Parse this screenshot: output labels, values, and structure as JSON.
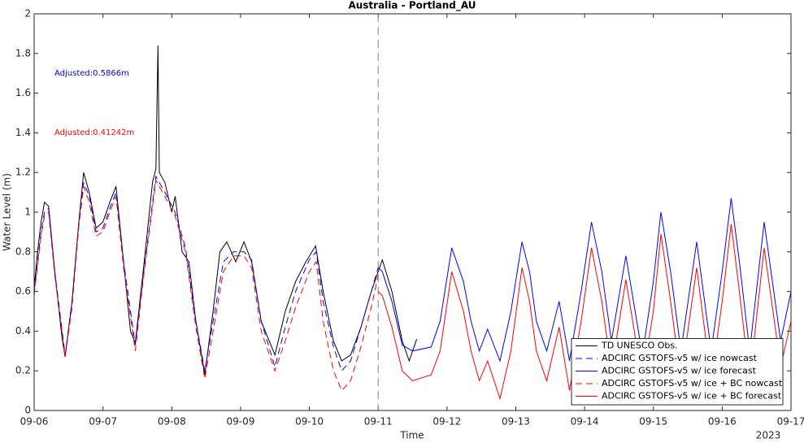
{
  "chart_data": {
    "type": "line",
    "title": "Australia - Portland_AU",
    "xlabel": "Time",
    "xlabel_secondary": "2023",
    "ylabel": "Water Level (m)",
    "xlim": [
      0,
      11
    ],
    "xticks": [
      {
        "value": 0,
        "label": "09-06"
      },
      {
        "value": 1,
        "label": "09-07"
      },
      {
        "value": 2,
        "label": "09-08"
      },
      {
        "value": 3,
        "label": "09-09"
      },
      {
        "value": 4,
        "label": "09-10"
      },
      {
        "value": 5,
        "label": "09-11"
      },
      {
        "value": 6,
        "label": "09-12"
      },
      {
        "value": 7,
        "label": "09-13"
      },
      {
        "value": 8,
        "label": "09-14"
      },
      {
        "value": 9,
        "label": "09-15"
      },
      {
        "value": 10,
        "label": "09-16"
      },
      {
        "value": 11,
        "label": "09-17"
      }
    ],
    "ylim": [
      0,
      2
    ],
    "yticks": [
      0,
      0.2,
      0.4,
      0.6,
      0.8,
      1,
      1.2,
      1.4,
      1.6,
      1.8,
      2
    ],
    "vline": 5,
    "legend_position": "lower-right",
    "annotations": [
      {
        "text": "Adjusted:0.5866m",
        "color": "#0000ff"
      },
      {
        "text": "Adjusted:0.41242m",
        "color": "#ff0000"
      }
    ],
    "series": [
      {
        "name": "TD UNESCO Obs.",
        "color": "#000000",
        "line_style": "solid",
        "x": [
          0,
          0.05,
          0.1,
          0.15,
          0.21,
          0.3,
          0.4,
          0.45,
          0.55,
          0.65,
          0.72,
          0.8,
          0.9,
          1.0,
          1.1,
          1.19,
          1.3,
          1.4,
          1.47,
          1.6,
          1.72,
          1.77,
          1.8,
          1.82,
          1.9,
          2.0,
          2.05,
          2.15,
          2.25,
          2.35,
          2.48,
          2.6,
          2.7,
          2.8,
          2.93,
          3.05,
          3.16,
          3.3,
          3.5,
          3.65,
          3.8,
          3.95,
          4.09,
          4.2,
          4.35,
          4.47,
          4.6,
          4.75,
          4.9,
          5.06,
          5.2,
          5.35,
          5.45,
          5.56
        ],
        "values": [
          0.62,
          0.8,
          0.95,
          1.05,
          1.03,
          0.7,
          0.38,
          0.27,
          0.55,
          0.95,
          1.2,
          1.1,
          0.92,
          0.95,
          1.05,
          1.13,
          0.75,
          0.4,
          0.34,
          0.75,
          1.15,
          1.22,
          1.84,
          1.2,
          1.15,
          1.0,
          1.08,
          0.8,
          0.75,
          0.45,
          0.18,
          0.5,
          0.8,
          0.85,
          0.75,
          0.85,
          0.75,
          0.45,
          0.28,
          0.5,
          0.65,
          0.75,
          0.83,
          0.6,
          0.35,
          0.25,
          0.28,
          0.42,
          0.6,
          0.76,
          0.6,
          0.35,
          0.25,
          0.36
        ]
      },
      {
        "name": "ADCIRC GSTOFS-v5 w/ ice nowcast",
        "color": "#0000ff",
        "line_style": "dashed",
        "x": [
          0,
          0.1,
          0.15,
          0.21,
          0.3,
          0.45,
          0.55,
          0.65,
          0.72,
          0.8,
          0.9,
          1.0,
          1.1,
          1.19,
          1.3,
          1.47,
          1.6,
          1.77,
          1.9,
          2.05,
          2.2,
          2.35,
          2.48,
          2.6,
          2.75,
          2.9,
          3.05,
          3.16,
          3.3,
          3.5,
          3.65,
          3.8,
          4.0,
          4.1,
          4.2,
          4.35,
          4.47,
          4.6,
          4.75,
          4.9,
          5.0
        ],
        "values": [
          0.6,
          0.9,
          1.0,
          1.02,
          0.7,
          0.28,
          0.55,
          0.95,
          1.15,
          1.08,
          0.9,
          0.92,
          1.02,
          1.1,
          0.75,
          0.33,
          0.72,
          1.18,
          1.1,
          1.0,
          0.82,
          0.45,
          0.2,
          0.45,
          0.75,
          0.8,
          0.8,
          0.76,
          0.45,
          0.22,
          0.42,
          0.6,
          0.76,
          0.8,
          0.55,
          0.32,
          0.2,
          0.25,
          0.42,
          0.6,
          0.72
        ]
      },
      {
        "name": "ADCIRC GSTOFS-v5 w/ ice forecast",
        "color": "#0000ff",
        "line_style": "solid",
        "x": [
          5.0,
          5.06,
          5.2,
          5.35,
          5.5,
          5.77,
          5.9,
          6.07,
          6.24,
          6.35,
          6.47,
          6.59,
          6.77,
          6.93,
          7.09,
          7.2,
          7.3,
          7.45,
          7.63,
          7.78,
          7.95,
          8.1,
          8.25,
          8.39,
          8.6,
          8.84,
          9.0,
          9.11,
          9.25,
          9.4,
          9.63,
          9.84,
          10.0,
          10.13,
          10.25,
          10.4,
          10.61,
          10.85,
          11.0
        ],
        "values": [
          0.72,
          0.7,
          0.55,
          0.33,
          0.3,
          0.32,
          0.45,
          0.82,
          0.65,
          0.45,
          0.3,
          0.41,
          0.25,
          0.5,
          0.85,
          0.7,
          0.45,
          0.3,
          0.55,
          0.25,
          0.6,
          0.95,
          0.7,
          0.35,
          0.78,
          0.28,
          0.65,
          1.0,
          0.7,
          0.3,
          0.85,
          0.3,
          0.7,
          1.07,
          0.75,
          0.3,
          0.95,
          0.35,
          0.6
        ]
      },
      {
        "name": "ADCIRC GSTOFS-v5 w/ ice + BC nowcast",
        "color": "#ff0000",
        "line_style": "dashed",
        "x": [
          0,
          0.1,
          0.15,
          0.21,
          0.3,
          0.45,
          0.55,
          0.65,
          0.72,
          0.8,
          0.9,
          1.0,
          1.1,
          1.19,
          1.3,
          1.47,
          1.6,
          1.77,
          1.9,
          2.05,
          2.2,
          2.35,
          2.48,
          2.6,
          2.75,
          2.9,
          3.05,
          3.16,
          3.3,
          3.5,
          3.65,
          3.8,
          4.0,
          4.1,
          4.2,
          4.35,
          4.47,
          4.6,
          4.75,
          4.9,
          5.0
        ],
        "values": [
          0.58,
          0.88,
          0.98,
          1.0,
          0.68,
          0.27,
          0.52,
          0.93,
          1.13,
          1.05,
          0.88,
          0.9,
          1.0,
          1.08,
          0.72,
          0.3,
          0.7,
          1.16,
          1.08,
          0.98,
          0.8,
          0.42,
          0.16,
          0.4,
          0.7,
          0.78,
          0.78,
          0.72,
          0.4,
          0.2,
          0.35,
          0.52,
          0.7,
          0.75,
          0.45,
          0.2,
          0.1,
          0.15,
          0.32,
          0.52,
          0.68
        ]
      },
      {
        "name": "ADCIRC GSTOFS-v5 w/ ice + BC forecast",
        "color": "#ff0000",
        "line_style": "solid",
        "x": [
          5.0,
          5.06,
          5.2,
          5.35,
          5.5,
          5.77,
          5.9,
          6.07,
          6.24,
          6.35,
          6.47,
          6.59,
          6.77,
          6.93,
          7.09,
          7.2,
          7.3,
          7.45,
          7.63,
          7.78,
          7.95,
          8.1,
          8.25,
          8.39,
          8.6,
          8.84,
          9.0,
          9.11,
          9.25,
          9.4,
          9.63,
          9.84,
          10.0,
          10.13,
          10.25,
          10.4,
          10.61,
          10.85,
          11.0
        ],
        "values": [
          0.6,
          0.58,
          0.42,
          0.2,
          0.15,
          0.18,
          0.3,
          0.7,
          0.5,
          0.3,
          0.15,
          0.25,
          0.06,
          0.3,
          0.72,
          0.55,
          0.3,
          0.15,
          0.42,
          0.1,
          0.45,
          0.82,
          0.55,
          0.2,
          0.66,
          0.15,
          0.5,
          0.89,
          0.55,
          0.15,
          0.72,
          0.15,
          0.55,
          0.94,
          0.6,
          0.15,
          0.82,
          0.22,
          0.45
        ]
      }
    ]
  }
}
